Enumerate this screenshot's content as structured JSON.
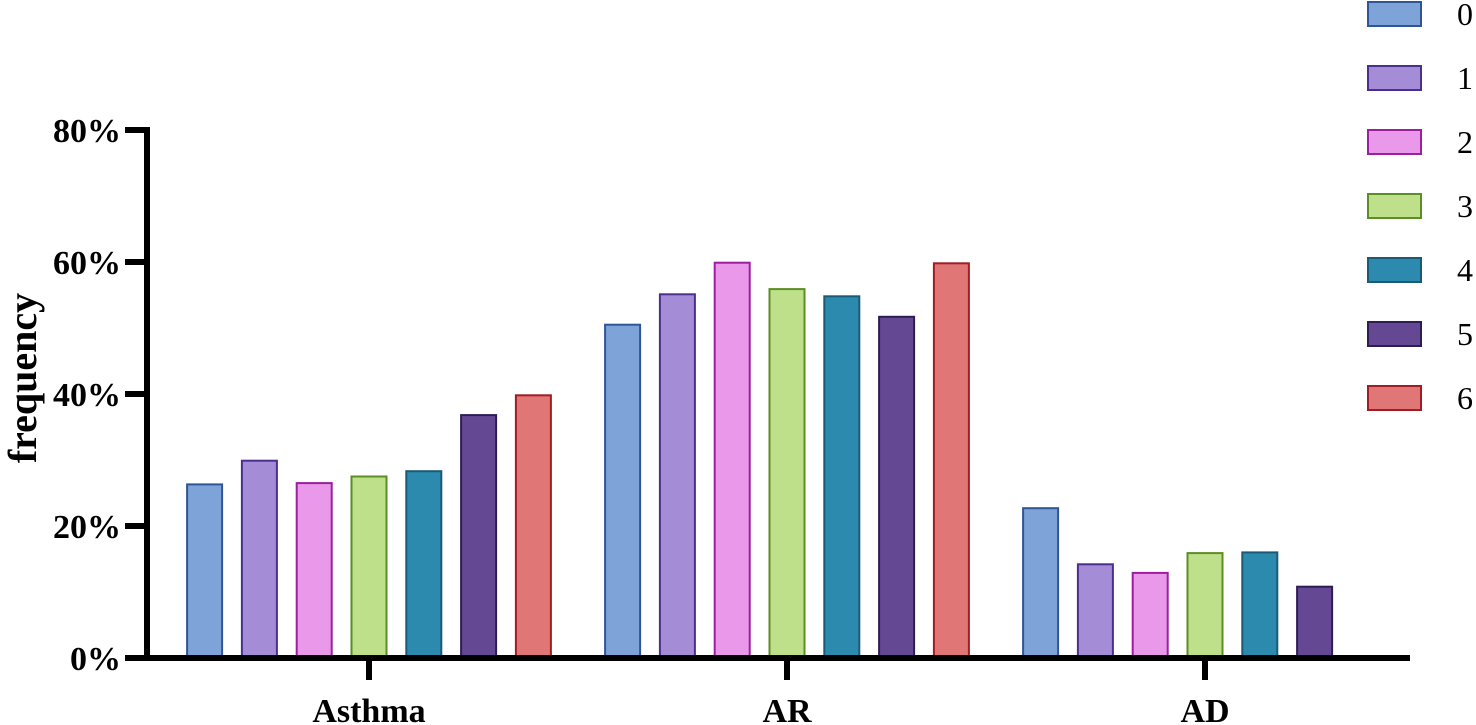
{
  "chart_data": {
    "type": "bar",
    "title": "",
    "xlabel": "",
    "ylabel": "frequency",
    "ylim": [
      0,
      80
    ],
    "yticks": [
      {
        "value": 0,
        "label": "0%"
      },
      {
        "value": 20,
        "label": "20%"
      },
      {
        "value": 40,
        "label": "40%"
      },
      {
        "value": 60,
        "label": "60%"
      },
      {
        "value": 80,
        "label": "80%"
      }
    ],
    "categories": [
      "Asthma",
      "AR",
      "AD"
    ],
    "series": [
      {
        "name": "0",
        "fill": "#7ea3d8",
        "stroke": "#2f5597",
        "values": [
          26.3,
          50.5,
          22.7
        ]
      },
      {
        "name": "1",
        "fill": "#a58cd6",
        "stroke": "#4b2f8f",
        "values": [
          29.9,
          55.1,
          14.2
        ]
      },
      {
        "name": "2",
        "fill": "#ea98ea",
        "stroke": "#9b1fa0",
        "values": [
          26.5,
          59.9,
          12.9
        ]
      },
      {
        "name": "3",
        "fill": "#bfe08a",
        "stroke": "#5b8e23",
        "values": [
          27.5,
          55.9,
          15.9
        ]
      },
      {
        "name": "4",
        "fill": "#2b8aae",
        "stroke": "#1b5a77",
        "values": [
          28.3,
          54.8,
          16.0
        ]
      },
      {
        "name": "5",
        "fill": "#644894",
        "stroke": "#2e1d55",
        "values": [
          36.8,
          51.7,
          10.8
        ]
      },
      {
        "name": "6",
        "fill": "#e07676",
        "stroke": "#a01d24",
        "values": [
          39.8,
          59.8,
          null
        ]
      }
    ],
    "legend": "top-right",
    "grid": false
  }
}
